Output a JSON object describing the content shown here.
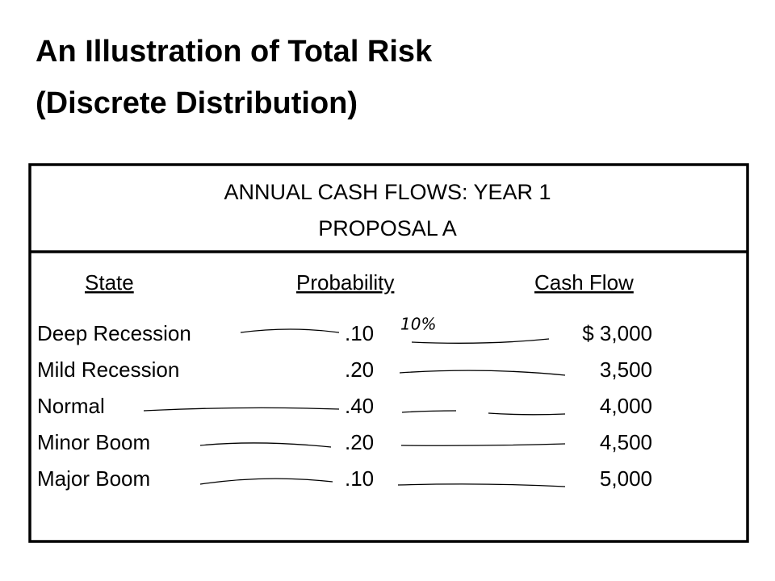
{
  "title": [
    "An Illustration of Total Risk",
    "(Discrete Distribution)"
  ],
  "box": {
    "heading": [
      "ANNUAL CASH FLOWS:  YEAR 1",
      "PROPOSAL A"
    ],
    "table": {
      "columns": [
        "State",
        "Probability",
        "Cash Flow"
      ],
      "rows": [
        [
          "Deep Recession",
          ".10",
          "$ 3,000"
        ],
        [
          "Mild Recession",
          ".20",
          "3,500"
        ],
        [
          "Normal",
          ".40",
          "4,000"
        ],
        [
          "Minor Boom",
          ".20",
          "4,500"
        ],
        [
          "Major Boom",
          ".10",
          "5,000"
        ]
      ]
    },
    "annotation": "10%"
  }
}
